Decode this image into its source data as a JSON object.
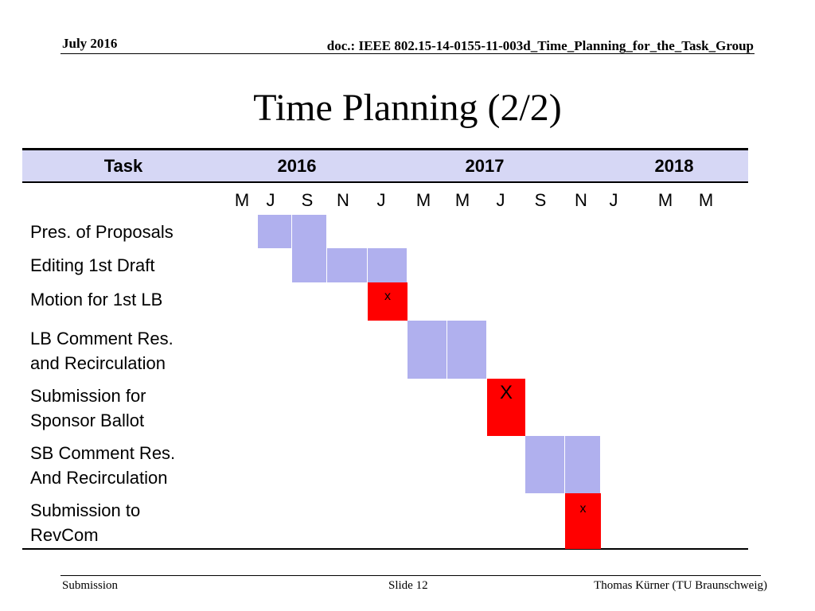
{
  "header": {
    "date": "July 2016",
    "doc": "doc.: IEEE 802.15-14-0155-11-003d_Time_Planning_for_the_Task_Group"
  },
  "title": "Time Planning (2/2)",
  "table": {
    "headers": {
      "task": "Task",
      "y2016": "2016",
      "y2017": "2017",
      "y2018": "2018"
    },
    "months": [
      "M",
      "J",
      "S",
      "N",
      "J",
      "M",
      "M",
      "J",
      "S",
      "N",
      "J",
      "M",
      "M"
    ],
    "tasks": [
      {
        "name": "Pres. of Proposals"
      },
      {
        "name": "Editing 1st Draft"
      },
      {
        "name": "Motion for 1st LB"
      },
      {
        "name": "LB Comment Res.\nand Recirculation"
      },
      {
        "name": "Submission for\nSponsor Ballot"
      },
      {
        "name": "SB Comment Res.\nAnd Recirculation"
      },
      {
        "name": "Submission to\nRevCom"
      }
    ],
    "cells": [
      {
        "task": 0,
        "kind": "plan",
        "mark": ""
      },
      {
        "task": 0,
        "kind": "plan",
        "mark": ""
      },
      {
        "task": 1,
        "kind": "plan",
        "mark": ""
      },
      {
        "task": 1,
        "kind": "plan",
        "mark": ""
      },
      {
        "task": 1,
        "kind": "plan",
        "mark": ""
      },
      {
        "task": 2,
        "kind": "milestone",
        "mark": "x"
      },
      {
        "task": 3,
        "kind": "plan",
        "mark": ""
      },
      {
        "task": 3,
        "kind": "plan",
        "mark": ""
      },
      {
        "task": 4,
        "kind": "milestone",
        "mark": "X"
      },
      {
        "task": 5,
        "kind": "plan",
        "mark": ""
      },
      {
        "task": 5,
        "kind": "plan",
        "mark": ""
      },
      {
        "task": 6,
        "kind": "milestone",
        "mark": "x"
      }
    ]
  },
  "footer": {
    "left": "Submission",
    "center": "Slide 12",
    "right": "Thomas Kürner (TU Braunschweig)"
  }
}
